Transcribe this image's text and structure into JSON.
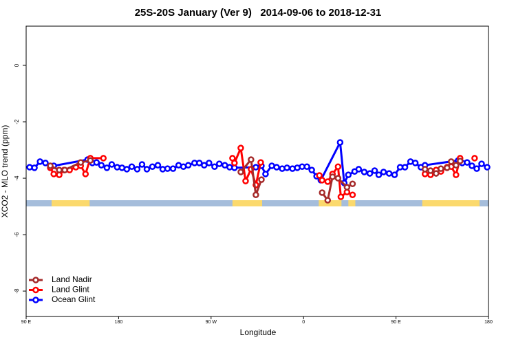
{
  "chart_data": {
    "type": "line",
    "title": "25S-20S January (Ver 9)   2014-09-06 to 2018-12-31",
    "x_label": "Longitude",
    "y_label": "XCO2 - MLO trend (ppm)",
    "xlim": [
      90,
      540
    ],
    "ylim": [
      -8.9,
      1.39
    ],
    "xticks": [
      {
        "value": 90,
        "label": "90 E"
      },
      {
        "value": 180,
        "label": "180"
      },
      {
        "value": 270,
        "label": "90 W"
      },
      {
        "value": 360,
        "label": "0"
      },
      {
        "value": 450,
        "label": "90 E"
      },
      {
        "value": 540,
        "label": "180"
      }
    ],
    "yticks": [
      0,
      -2,
      -4,
      -6,
      -8
    ],
    "legend": "bottom-left",
    "land_lon": [
      [
        114.8,
        151.8
      ],
      [
        290.8,
        319.7
      ],
      [
        374.8,
        396.9
      ],
      [
        403.6,
        410.4
      ],
      [
        475.5,
        531.3
      ]
    ],
    "series": [
      {
        "name": "Land Nadir",
        "color": "#a52a2a",
        "x": [
          113.5,
          122.2,
          127.6,
          143.1,
          152.5,
          null,
          298.9,
          308.9,
          313.6,
          319.0,
          null,
          378.1,
          383.5,
          388.2,
          393.6,
          402.3,
          407.7,
          null,
          478.2,
          483.6,
          489.0,
          493.7,
          499.7,
          503.7,
          508.4,
          512.4
        ],
        "values": [
          -3.56,
          -3.71,
          -3.71,
          -3.44,
          -3.37,
          null,
          -3.78,
          -3.34,
          -4.59,
          -4.05,
          null,
          -4.51,
          -4.78,
          -3.95,
          -4.0,
          -4.32,
          -4.2,
          null,
          -3.68,
          -3.73,
          -3.83,
          -3.66,
          -3.63,
          -3.41,
          -3.54,
          -3.39
        ]
      },
      {
        "name": "Land Glint",
        "color": "#ff0000",
        "x": [
          113.5,
          116.9,
          122.2,
          126.9,
          132.3,
          138.4,
          143.1,
          147.8,
          152.5,
          165.2,
          null,
          290.8,
          292.8,
          298.9,
          303.6,
          308.9,
          313.6,
          318.3,
          null,
          375.4,
          378.1,
          383.5,
          388.2,
          393.6,
          396.3,
          402.3,
          407.7,
          null,
          478.2,
          483.6,
          489.0,
          493.7,
          499.7,
          503.7,
          508.4,
          512.4,
          null,
          526.5
        ],
        "values": [
          -3.63,
          -3.85,
          -3.88,
          -3.71,
          -3.71,
          -3.61,
          -3.56,
          -3.85,
          -3.29,
          -3.29,
          null,
          -3.29,
          -3.46,
          -2.93,
          -4.1,
          -3.68,
          -4.24,
          -3.44,
          null,
          -3.9,
          -4.07,
          -4.12,
          -3.85,
          -3.59,
          -4.66,
          -4.49,
          -4.59,
          null,
          -3.85,
          -3.88,
          -3.71,
          -3.76,
          -3.61,
          -3.59,
          -3.88,
          -3.29,
          null,
          -3.29
        ]
      },
      {
        "name": "Ocean Glint",
        "color": "#0000ff",
        "x": [
          93.4,
          98.1,
          103.5,
          108.8,
          113.5,
          116.9,
          149.8,
          154.5,
          158.5,
          163.2,
          168.6,
          173.3,
          178.6,
          183.3,
          188.0,
          192.8,
          198.1,
          202.8,
          207.5,
          212.9,
          218.2,
          222.9,
          227.6,
          233.0,
          238.4,
          243.1,
          247.8,
          253.9,
          258.6,
          263.3,
          268.0,
          273.4,
          278.0,
          283.4,
          288.1,
          292.8,
          313.6,
          319.0,
          323.0,
          329.1,
          333.8,
          339.2,
          343.9,
          349.2,
          353.9,
          358.6,
          363.3,
          368.0,
          372.7,
          376.8,
          395.6,
          399.6,
          403.6,
          409.7,
          413.7,
          419.1,
          424.5,
          429.2,
          433.2,
          437.9,
          443.3,
          448.6,
          454.0,
          458.7,
          464.1,
          468.8,
          474.2,
          478.2,
          510.5,
          514.5,
          519.2,
          523.9,
          528.6,
          533.3,
          538.7
        ],
        "values": [
          -3.61,
          -3.63,
          -3.41,
          -3.46,
          -3.63,
          -3.56,
          -3.34,
          -3.46,
          -3.44,
          -3.54,
          -3.63,
          -3.51,
          -3.61,
          -3.63,
          -3.68,
          -3.59,
          -3.68,
          -3.51,
          -3.68,
          -3.59,
          -3.54,
          -3.68,
          -3.66,
          -3.66,
          -3.54,
          -3.59,
          -3.54,
          -3.46,
          -3.46,
          -3.54,
          -3.46,
          -3.59,
          -3.49,
          -3.54,
          -3.61,
          -3.63,
          -3.61,
          -3.56,
          -3.85,
          -3.56,
          -3.61,
          -3.66,
          -3.63,
          -3.66,
          -3.63,
          -3.59,
          -3.59,
          -3.71,
          -3.93,
          -4.07,
          -2.73,
          -4.17,
          -3.88,
          -3.76,
          -3.68,
          -3.78,
          -3.83,
          -3.73,
          -3.88,
          -3.78,
          -3.83,
          -3.88,
          -3.61,
          -3.61,
          -3.41,
          -3.46,
          -3.61,
          -3.54,
          -3.37,
          -3.46,
          -3.44,
          -3.56,
          -3.66,
          -3.49,
          -3.61
        ]
      }
    ]
  }
}
